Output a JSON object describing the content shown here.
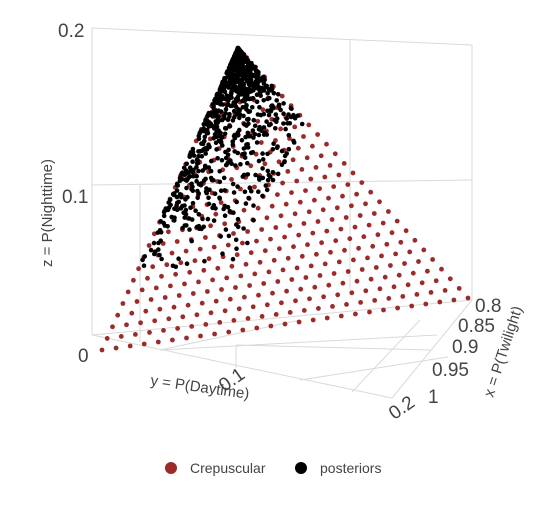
{
  "chart_data": {
    "type": "scatter3d",
    "axes": {
      "x": {
        "label": "x = P(Twilight)",
        "range": [
          0.8,
          1
        ],
        "ticks": [
          "0.8",
          "0.85",
          "0.9",
          "0.95",
          "1"
        ]
      },
      "y": {
        "label": "y = P(Daytime)",
        "range": [
          0,
          0.2
        ],
        "ticks": [
          "0",
          "0.1",
          "0.2"
        ]
      },
      "z": {
        "label": "z = P(Nighttime)",
        "range": [
          0,
          0.2
        ],
        "ticks": [
          "0.1",
          "0.2"
        ]
      }
    },
    "simplex_constraint": "x + y + z = 1",
    "grid": true,
    "legend_position": "bottom",
    "series": [
      {
        "name": "Crepuscular",
        "color": "#9b2a2a",
        "marker": "circle",
        "grid_step": 0.0075,
        "region": "simplex face: x in [0.8,1], y in [0,0.2], z in [0,0.2], x + y + z = 1"
      },
      {
        "name": "posteriors",
        "color": "#000000",
        "marker": "circle",
        "distribution": "scattered point cloud near y ≈ 0–0.05, z ≈ 0.05–0.2, x ≈ 0.8–0.93"
      }
    ]
  }
}
